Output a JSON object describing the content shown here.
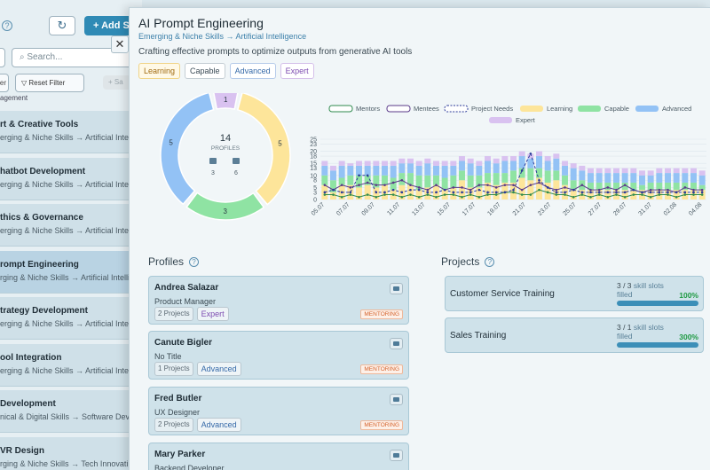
{
  "background": {
    "add_label": "+ Add Sk",
    "search_placeholder": "Search...",
    "filter_left_label": "er",
    "reset_filter_label": "Reset Filter",
    "save_stub_label": "+ Sa",
    "stub_text": "agement",
    "items": [
      {
        "title": "rt & Creative Tools",
        "sub": "erging & Niche Skills → Artificial Intellig"
      },
      {
        "title": "hatbot Development",
        "sub": "erging & Niche Skills → Artificial Intellig"
      },
      {
        "title": "thics & Governance",
        "sub": "erging & Niche Skills → Artificial Intellig"
      },
      {
        "title": "rompt Engineering",
        "sub": "rging & Niche Skills → Artificial Intellig"
      },
      {
        "title": "trategy Development",
        "sub": "erging & Niche Skills → Artificial Intellig"
      },
      {
        "title": "ool Integration",
        "sub": "erging & Niche Skills → Artificial Intellig"
      },
      {
        "title": " Development",
        "sub": "nical & Digital Skills → Software Deve"
      },
      {
        "title": "VR Design",
        "sub": "rging & Niche Skills → Tech Innovati"
      }
    ]
  },
  "panel": {
    "title": "AI Prompt Engineering",
    "breadcrumb": "Emerging & Niche Skills → Artificial Intelligence",
    "description": "Crafting effective prompts to optimize outputs from generative AI tools",
    "tags": [
      "Learning",
      "Capable",
      "Advanced",
      "Expert"
    ]
  },
  "donut": {
    "total": "14",
    "total_label": "PROFILES",
    "mentor_count": "3",
    "mentee_count": "6",
    "segments": [
      {
        "level": "Expert",
        "value": 1,
        "color": "#d9c2f0"
      },
      {
        "level": "Learning",
        "value": 5,
        "color": "#fde59a"
      },
      {
        "level": "Capable",
        "value": 3,
        "color": "#8fe3a3"
      },
      {
        "level": "Advanced",
        "value": 5,
        "color": "#93c2f5"
      }
    ]
  },
  "chart_data": {
    "type": "bar",
    "legend": [
      "Mentors",
      "Mentees",
      "Project Needs",
      "Learning",
      "Capable",
      "Advanced",
      "Expert"
    ],
    "x_ticks": [
      "05.07",
      "07.07",
      "09.07",
      "11.07",
      "13.07",
      "15.07",
      "17.07",
      "19.07",
      "21.07",
      "23.07",
      "25.07",
      "27.07",
      "29.07",
      "31.07",
      "02.08",
      "04.08"
    ],
    "y_ticks": [
      0,
      3,
      5,
      8,
      10,
      13,
      15,
      18,
      20,
      23,
      25
    ],
    "ylim": [
      0,
      25
    ],
    "colors": {
      "Learning": "#fde59a",
      "Capable": "#8fe3a3",
      "Advanced": "#93c2f5",
      "Expert": "#d9c2f0",
      "Mentors": "#2f8a4e",
      "Mentees": "#5a3a8a",
      "Project Needs": "#2c3b9a"
    },
    "series": [
      {
        "name": "Learning",
        "values": [
          6,
          3,
          6,
          6,
          5,
          6,
          5,
          6,
          4,
          6,
          6,
          4,
          5,
          6,
          4,
          5,
          8,
          5,
          5,
          7,
          6,
          7,
          7,
          9,
          8,
          9,
          7,
          8,
          6,
          4,
          4,
          4,
          4,
          4,
          4,
          4,
          4,
          4,
          4,
          4,
          4,
          4,
          4,
          4,
          4
        ]
      },
      {
        "name": "Capable",
        "values": [
          4,
          5,
          3,
          4,
          5,
          4,
          5,
          4,
          5,
          5,
          5,
          6,
          5,
          4,
          5,
          5,
          4,
          5,
          5,
          4,
          5,
          4,
          5,
          4,
          5,
          4,
          5,
          4,
          4,
          4,
          4,
          3,
          3,
          3,
          3,
          3,
          3,
          2,
          3,
          3,
          3,
          3,
          3,
          3,
          2
        ]
      },
      {
        "name": "Advanced",
        "values": [
          4,
          4,
          5,
          4,
          4,
          4,
          4,
          4,
          5,
          4,
          4,
          4,
          5,
          4,
          5,
          4,
          4,
          5,
          4,
          5,
          4,
          5,
          4,
          5,
          4,
          5,
          4,
          5,
          4,
          5,
          4,
          4,
          4,
          4,
          4,
          4,
          4,
          4,
          3,
          4,
          4,
          4,
          4,
          4,
          4
        ]
      },
      {
        "name": "Expert",
        "values": [
          2,
          2,
          2,
          1,
          2,
          2,
          2,
          2,
          2,
          2,
          2,
          2,
          2,
          2,
          2,
          2,
          2,
          2,
          2,
          2,
          2,
          2,
          2,
          2,
          2,
          2,
          2,
          2,
          2,
          2,
          2,
          2,
          2,
          2,
          2,
          2,
          2,
          2,
          2,
          2,
          2,
          2,
          2,
          2,
          2
        ]
      },
      {
        "name": "Mentors",
        "values": [
          2,
          2,
          1,
          2,
          1,
          2,
          1,
          2,
          2,
          1,
          2,
          1,
          2,
          1,
          2,
          2,
          1,
          2,
          1,
          2,
          2,
          3,
          3,
          2,
          2,
          4,
          3,
          2,
          2,
          1,
          2,
          1,
          2,
          1,
          2,
          1,
          2,
          2,
          1,
          2,
          2,
          1,
          2,
          2,
          2
        ]
      },
      {
        "name": "Mentees",
        "values": [
          6,
          4,
          6,
          5,
          6,
          7,
          6,
          6,
          7,
          8,
          6,
          5,
          4,
          6,
          4,
          5,
          5,
          4,
          6,
          6,
          5,
          6,
          6,
          4,
          6,
          7,
          5,
          4,
          5,
          4,
          6,
          4,
          4,
          5,
          4,
          6,
          4,
          3,
          4,
          4,
          4,
          3,
          5,
          4,
          4
        ]
      },
      {
        "name": "Project Needs",
        "values": [
          3,
          4,
          3,
          3,
          10,
          10,
          3,
          3,
          4,
          3,
          4,
          4,
          3,
          3,
          4,
          3,
          3,
          3,
          4,
          3,
          3,
          3,
          4,
          12,
          19,
          8,
          5,
          3,
          3,
          4,
          3,
          3,
          3,
          3,
          3,
          3,
          4,
          3,
          3,
          3,
          3,
          3,
          3,
          3,
          3
        ]
      }
    ]
  },
  "profiles_title": "Profiles",
  "projects_title": "Projects",
  "profiles": [
    {
      "name": "Andrea Salazar",
      "role": "Product Manager",
      "projects": "2 Projects",
      "level": "Expert",
      "badge": "MENTORING"
    },
    {
      "name": "Canute Bigler",
      "role": "No Title",
      "projects": "1 Projects",
      "level": "Advanced",
      "badge": "MENTORING"
    },
    {
      "name": "Fred Butler",
      "role": "UX Designer",
      "projects": "2 Projects",
      "level": "Advanced",
      "badge": "MENTORING"
    },
    {
      "name": "Mary Parker",
      "role": "Backend Developer",
      "projects": "",
      "level": "",
      "badge": ""
    }
  ],
  "projects": [
    {
      "name": "Customer Service Training",
      "slots": "3 / 3",
      "slots_label": "skill slots",
      "filled_label": "filled",
      "percent": "100%"
    },
    {
      "name": "Sales Training",
      "slots": "3 / 1",
      "slots_label": "skill slots",
      "filled_label": "filled",
      "percent": "300%"
    }
  ]
}
